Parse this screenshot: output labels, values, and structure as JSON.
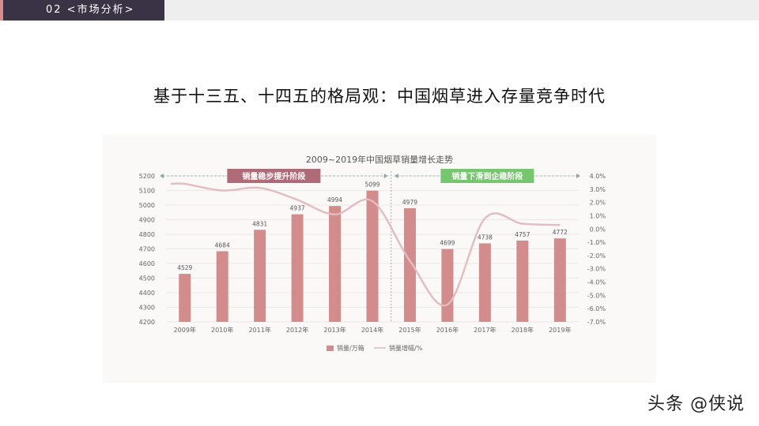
{
  "header": {
    "section_label": "02 <市场分析>"
  },
  "slide": {
    "title": "基于十三五、十四五的格局观：中国烟草进入存量竞争时代"
  },
  "watermark": "头条 @侠说",
  "colors": {
    "bar": "#d28c8c",
    "line": "#e2bcbf",
    "phase1_badge": "#b06b78",
    "phase2_badge": "#76c56f",
    "header_bg": "#3a3345",
    "arrow": "#8aa8a8"
  },
  "chart_data": {
    "type": "bar",
    "title": "2009~2019年中国烟草销量增长走势",
    "categories": [
      "2009年",
      "2010年",
      "2011年",
      "2012年",
      "2013年",
      "2014年",
      "2015年",
      "2016年",
      "2017年",
      "2018年",
      "2019年"
    ],
    "series": [
      {
        "name": "销量/万箱",
        "type": "bar",
        "axis": "left",
        "values": [
          4529,
          4684,
          4831,
          4937,
          4994,
          5099,
          4979,
          4699,
          4738,
          4757,
          4772
        ]
      },
      {
        "name": "销量增幅/%",
        "type": "line",
        "axis": "right",
        "values": [
          3.4,
          2.9,
          3.1,
          2.2,
          1.1,
          2.1,
          -2.4,
          -5.7,
          0.8,
          0.4,
          0.3
        ]
      }
    ],
    "data_labels": [
      "4529",
      "4684",
      "4831",
      "4937",
      "4994",
      "5099",
      "4979",
      "4699",
      "4738",
      "4757",
      "4772"
    ],
    "y_left": {
      "range": [
        4200,
        5200
      ],
      "ticks": [
        "5200",
        "5100",
        "5000",
        "4900",
        "4800",
        "4700",
        "4600",
        "4500",
        "4400",
        "4300",
        "4200"
      ]
    },
    "y_right": {
      "range": [
        -7.0,
        4.0
      ],
      "ticks": [
        "4.0%",
        "3.0%",
        "2.0%",
        "1.0%",
        "0.0%",
        "-1.0%",
        "-2.0%",
        "-3.0%",
        "-4.0%",
        "-5.0%",
        "-6.0%",
        "-7.0%"
      ]
    },
    "phases": [
      {
        "label": "销量稳步提升阶段",
        "from": "2009年",
        "to": "2014年"
      },
      {
        "label": "销量下滑到企稳阶段",
        "from": "2015年",
        "to": "2019年"
      }
    ],
    "legend": {
      "position": "bottom",
      "bar_label": "销量/万箱",
      "line_label": "销量增幅/%"
    },
    "grid": true
  }
}
